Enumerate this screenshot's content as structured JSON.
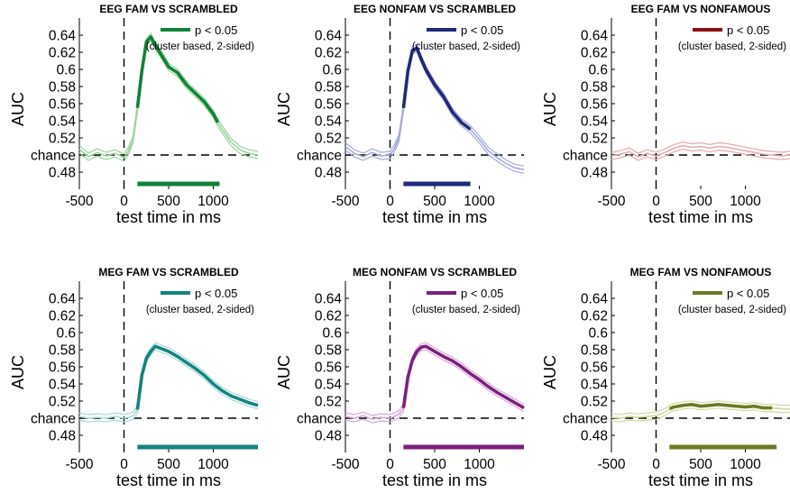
{
  "figure_title": "",
  "chart_data": [
    {
      "type": "line",
      "title": "EEG FAM VS SCRAMBLED",
      "color": "#10823a",
      "light_color": "#9bd49a",
      "xlabel": "test time in ms",
      "ylabel": "AUC",
      "xlim": [
        -500,
        1500
      ],
      "ylim": [
        0.46,
        0.66
      ],
      "xticks": [
        -500,
        0,
        500,
        1000
      ],
      "xtick_labels": [
        "-500",
        "0",
        "500",
        "1000"
      ],
      "yticks": [
        0.48,
        0.5,
        0.52,
        0.54,
        0.56,
        0.58,
        0.6,
        0.62,
        0.64
      ],
      "ytick_labels": [
        "0.48",
        "chance",
        "0.52",
        "0.54",
        "0.56",
        "0.58",
        "0.6",
        "0.62",
        "0.64"
      ],
      "chance": 0.5,
      "onset": 0,
      "legend": "p < 0.05",
      "legend_sub": "(cluster based, 2-sided)",
      "legend_position": "top-right",
      "significant_window_ms": [
        150,
        1070
      ],
      "series": [
        {
          "name": "AUC",
          "x": [
            -500,
            -400,
            -300,
            -200,
            -100,
            0,
            50,
            100,
            150,
            200,
            250,
            300,
            350,
            400,
            500,
            600,
            700,
            800,
            900,
            1000,
            1050,
            1100,
            1200,
            1300,
            1400,
            1500
          ],
          "y": [
            0.507,
            0.498,
            0.503,
            0.499,
            0.502,
            0.497,
            0.505,
            0.518,
            0.555,
            0.598,
            0.632,
            0.638,
            0.628,
            0.62,
            0.603,
            0.596,
            0.582,
            0.572,
            0.562,
            0.548,
            0.538,
            0.53,
            0.515,
            0.506,
            0.502,
            0.5
          ]
        }
      ]
    },
    {
      "type": "line",
      "title": "EEG NONFAM VS SCRAMBLED",
      "color": "#1f2a7a",
      "light_color": "#a4a9d8",
      "xlabel": "test time in ms",
      "ylabel": "AUC",
      "xlim": [
        -500,
        1500
      ],
      "ylim": [
        0.46,
        0.66
      ],
      "xticks": [
        -500,
        0,
        500,
        1000
      ],
      "xtick_labels": [
        "-500",
        "0",
        "500",
        "1000"
      ],
      "yticks": [
        0.48,
        0.5,
        0.52,
        0.54,
        0.56,
        0.58,
        0.6,
        0.62,
        0.64
      ],
      "ytick_labels": [
        "0.48",
        "chance",
        "0.52",
        "0.54",
        "0.56",
        "0.58",
        "0.6",
        "0.62",
        "0.64"
      ],
      "chance": 0.5,
      "onset": 0,
      "legend": "p < 0.05",
      "legend_sub": "(cluster based, 2-sided)",
      "legend_position": "top-right",
      "significant_window_ms": [
        150,
        900
      ],
      "series": [
        {
          "name": "AUC",
          "x": [
            -500,
            -400,
            -300,
            -200,
            -100,
            0,
            50,
            100,
            150,
            200,
            250,
            300,
            350,
            400,
            500,
            600,
            700,
            800,
            900,
            1000,
            1100,
            1200,
            1300,
            1400,
            1500
          ],
          "y": [
            0.51,
            0.502,
            0.498,
            0.503,
            0.499,
            0.5,
            0.508,
            0.52,
            0.555,
            0.598,
            0.622,
            0.625,
            0.612,
            0.6,
            0.582,
            0.568,
            0.55,
            0.538,
            0.53,
            0.518,
            0.505,
            0.497,
            0.49,
            0.485,
            0.483
          ]
        }
      ]
    },
    {
      "type": "line",
      "title": "EEG FAM VS NONFAMOUS",
      "color": "#8b0f12",
      "light_color": "#e5abab",
      "xlabel": "test time in ms",
      "ylabel": "AUC",
      "xlim": [
        -500,
        1500
      ],
      "ylim": [
        0.46,
        0.66
      ],
      "xticks": [
        -500,
        0,
        500,
        1000
      ],
      "xtick_labels": [
        "-500",
        "0",
        "500",
        "1000"
      ],
      "yticks": [
        0.48,
        0.5,
        0.52,
        0.54,
        0.56,
        0.58,
        0.6,
        0.62,
        0.64
      ],
      "ytick_labels": [
        "0.48",
        "chance",
        "0.52",
        "0.54",
        "0.56",
        "0.58",
        "0.6",
        "0.62",
        "0.64"
      ],
      "chance": 0.5,
      "onset": 0,
      "legend": "p < 0.05",
      "legend_sub": "(cluster based, 2-sided)",
      "legend_position": "top-right",
      "significant_window_ms": null,
      "series": [
        {
          "name": "AUC",
          "x": [
            -500,
            -400,
            -300,
            -200,
            -100,
            0,
            100,
            200,
            300,
            400,
            500,
            600,
            700,
            800,
            900,
            1000,
            1100,
            1200,
            1300,
            1400,
            1500
          ],
          "y": [
            0.499,
            0.501,
            0.504,
            0.498,
            0.502,
            0.499,
            0.503,
            0.508,
            0.511,
            0.509,
            0.51,
            0.508,
            0.51,
            0.509,
            0.507,
            0.505,
            0.503,
            0.501,
            0.5,
            0.499,
            0.5
          ]
        }
      ]
    },
    {
      "type": "line",
      "title": "MEG FAM VS SCRAMBLED",
      "color": "#138480",
      "light_color": "#a9d9d6",
      "xlabel": "test time in ms",
      "ylabel": "AUC",
      "xlim": [
        -500,
        1500
      ],
      "ylim": [
        0.46,
        0.66
      ],
      "xticks": [
        -500,
        0,
        500,
        1000
      ],
      "xtick_labels": [
        "-500",
        "0",
        "500",
        "1000"
      ],
      "yticks": [
        0.48,
        0.5,
        0.52,
        0.54,
        0.56,
        0.58,
        0.6,
        0.62,
        0.64
      ],
      "ytick_labels": [
        "0.48",
        "chance",
        "0.52",
        "0.54",
        "0.56",
        "0.58",
        "0.6",
        "0.62",
        "0.64"
      ],
      "chance": 0.5,
      "onset": 0,
      "legend": "p < 0.05",
      "legend_sub": "(cluster based, 2-sided)",
      "legend_position": "top-right",
      "significant_window_ms": [
        150,
        1500
      ],
      "series": [
        {
          "name": "AUC",
          "x": [
            -500,
            -400,
            -300,
            -200,
            -100,
            0,
            50,
            100,
            150,
            200,
            250,
            300,
            350,
            400,
            500,
            600,
            700,
            800,
            900,
            1000,
            1100,
            1200,
            1300,
            1400,
            1500
          ],
          "y": [
            0.502,
            0.5,
            0.501,
            0.5,
            0.502,
            0.5,
            0.501,
            0.503,
            0.51,
            0.55,
            0.57,
            0.578,
            0.584,
            0.582,
            0.578,
            0.572,
            0.565,
            0.558,
            0.55,
            0.54,
            0.532,
            0.526,
            0.522,
            0.518,
            0.515
          ]
        }
      ]
    },
    {
      "type": "line",
      "title": "MEG NONFAM VS SCRAMBLED",
      "color": "#7d1f7e",
      "light_color": "#d7a8d7",
      "xlabel": "test time in ms",
      "ylabel": "AUC",
      "xlim": [
        -500,
        1500
      ],
      "ylim": [
        0.46,
        0.66
      ],
      "xticks": [
        -500,
        0,
        500,
        1000
      ],
      "xtick_labels": [
        "-500",
        "0",
        "500",
        "1000"
      ],
      "yticks": [
        0.48,
        0.5,
        0.52,
        0.54,
        0.56,
        0.58,
        0.6,
        0.62,
        0.64
      ],
      "ytick_labels": [
        "0.48",
        "chance",
        "0.52",
        "0.54",
        "0.56",
        "0.58",
        "0.6",
        "0.62",
        "0.64"
      ],
      "chance": 0.5,
      "onset": 0,
      "legend": "p < 0.05",
      "legend_sub": "(cluster based, 2-sided)",
      "legend_position": "top-right",
      "significant_window_ms": [
        150,
        1500
      ],
      "series": [
        {
          "name": "AUC",
          "x": [
            -500,
            -400,
            -300,
            -200,
            -100,
            0,
            50,
            100,
            150,
            200,
            250,
            300,
            350,
            400,
            500,
            600,
            700,
            800,
            900,
            1000,
            1100,
            1200,
            1300,
            1400,
            1500
          ],
          "y": [
            0.502,
            0.5,
            0.503,
            0.499,
            0.501,
            0.5,
            0.502,
            0.505,
            0.512,
            0.548,
            0.568,
            0.578,
            0.583,
            0.584,
            0.578,
            0.572,
            0.567,
            0.56,
            0.552,
            0.545,
            0.537,
            0.53,
            0.524,
            0.518,
            0.512
          ]
        }
      ]
    },
    {
      "type": "line",
      "title": "MEG FAM VS NONFAMOUS",
      "color": "#6e7a22",
      "light_color": "#d2d9a0",
      "xlabel": "test time in ms",
      "ylabel": "AUC",
      "xlim": [
        -500,
        1500
      ],
      "ylim": [
        0.46,
        0.66
      ],
      "xticks": [
        -500,
        0,
        500,
        1000
      ],
      "xtick_labels": [
        "-500",
        "0",
        "500",
        "1000"
      ],
      "yticks": [
        0.48,
        0.5,
        0.52,
        0.54,
        0.56,
        0.58,
        0.6,
        0.62,
        0.64
      ],
      "ytick_labels": [
        "0.48",
        "chance",
        "0.52",
        "0.54",
        "0.56",
        "0.58",
        "0.6",
        "0.62",
        "0.64"
      ],
      "chance": 0.5,
      "onset": 0,
      "legend": "p < 0.05",
      "legend_sub": "(cluster based, 2-sided)",
      "legend_position": "top-right",
      "significant_window_ms": [
        150,
        1350
      ],
      "series": [
        {
          "name": "AUC",
          "x": [
            -500,
            -400,
            -300,
            -200,
            -100,
            0,
            50,
            100,
            150,
            200,
            300,
            400,
            500,
            600,
            700,
            800,
            900,
            1000,
            1100,
            1200,
            1300,
            1400,
            1500
          ],
          "y": [
            0.501,
            0.5,
            0.502,
            0.501,
            0.502,
            0.503,
            0.505,
            0.507,
            0.511,
            0.513,
            0.515,
            0.516,
            0.514,
            0.515,
            0.516,
            0.515,
            0.514,
            0.513,
            0.514,
            0.512,
            0.512,
            0.511,
            0.511
          ]
        }
      ]
    }
  ]
}
